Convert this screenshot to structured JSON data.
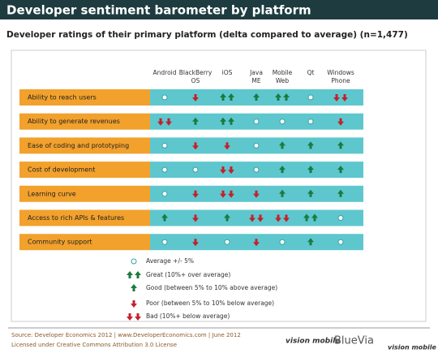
{
  "header": {
    "title": "Developer sentiment barometer by platform",
    "subtitle": "Developer ratings of their primary platform (delta compared to average) (n=1,477)"
  },
  "table": {
    "columns": [
      "Android",
      "BlackBerry OS",
      "iOS",
      "Java ME",
      "Mobile Web",
      "Qt",
      "Windows Phone"
    ],
    "rows": [
      {
        "label": "Ability to reach users",
        "cells": [
          "average",
          "poor",
          "great",
          "good",
          "great",
          "average",
          "bad"
        ]
      },
      {
        "label": "Ability to generate revenues",
        "cells": [
          "bad",
          "good",
          "great",
          "average",
          "average",
          "average",
          "poor"
        ]
      },
      {
        "label": "Ease of coding and prototyping",
        "cells": [
          "average",
          "poor",
          "poor",
          "average",
          "good",
          "good",
          "good"
        ]
      },
      {
        "label": "Cost of development",
        "cells": [
          "average",
          "average",
          "bad",
          "average",
          "good",
          "good",
          "good"
        ]
      },
      {
        "label": "Learning curve",
        "cells": [
          "average",
          "poor",
          "bad",
          "poor",
          "good",
          "good",
          "good"
        ]
      },
      {
        "label": "Access to rich APIs & features",
        "cells": [
          "good",
          "poor",
          "good",
          "bad",
          "bad",
          "great",
          "average"
        ]
      },
      {
        "label": "Community support",
        "cells": [
          "average",
          "poor",
          "average",
          "poor",
          "average",
          "good",
          "average"
        ]
      }
    ]
  },
  "legend": [
    {
      "symbol": "average",
      "label": "Average +/- 5%"
    },
    {
      "symbol": "great",
      "label": "Great (10%+ over average)"
    },
    {
      "symbol": "good",
      "label": "Good (between 5% to 10% above average)"
    },
    {
      "symbol": "poor",
      "label": "Poor (between 5% to 10% below average)"
    },
    {
      "symbol": "bad",
      "label": "Bad (10%+  below average)"
    }
  ],
  "footer": {
    "source": "Source: Developer Economics 2012 | www.DeveloperEconomics.com | June 2012",
    "license": "Licensed under Creative Commons Attribution 3.0 License",
    "logos": [
      "vision mobile",
      "BlueVia",
      "vision mobile"
    ]
  }
}
